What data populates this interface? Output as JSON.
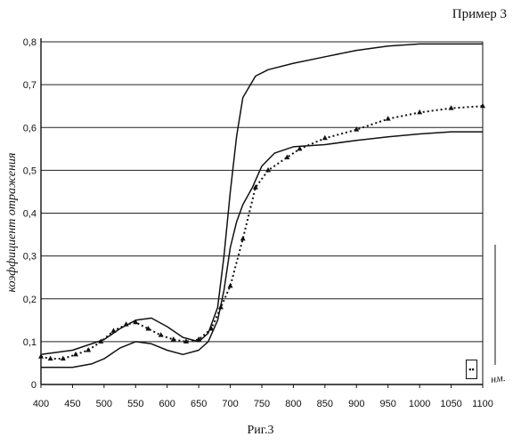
{
  "header": {
    "label": "Пример 3"
  },
  "caption": {
    "text": "Риг.3"
  },
  "legend": {
    "marker": "▪▪"
  },
  "chart_data": {
    "type": "line",
    "title": "",
    "ylabel": "коэффициент отражения",
    "xlabel": "нм.",
    "xlim": [
      400,
      1100
    ],
    "ylim": [
      0,
      0.8
    ],
    "x_ticks": [
      400,
      450,
      500,
      550,
      600,
      650,
      700,
      750,
      800,
      850,
      900,
      950,
      1000,
      1050,
      1100
    ],
    "y_ticks": [
      0,
      0.1,
      0.2,
      0.3,
      0.4,
      0.5,
      0.6,
      0.7,
      0.8
    ],
    "y_tick_labels": [
      "0",
      "0,1",
      "0,2",
      "0,3",
      "0,4",
      "0,5",
      "0,6",
      "0,7",
      "0,8"
    ],
    "grid": "horizontal",
    "series": [
      {
        "style": "solid",
        "x": [
          400,
          450,
          500,
          525,
          550,
          575,
          600,
          625,
          650,
          665,
          680,
          690,
          700,
          710,
          720,
          740,
          760,
          800,
          850,
          900,
          950,
          1000,
          1050,
          1100
        ],
        "y": [
          0.07,
          0.08,
          0.105,
          0.13,
          0.15,
          0.155,
          0.135,
          0.11,
          0.1,
          0.12,
          0.18,
          0.3,
          0.45,
          0.58,
          0.67,
          0.72,
          0.735,
          0.75,
          0.765,
          0.78,
          0.79,
          0.795,
          0.795,
          0.795
        ]
      },
      {
        "style": "solid",
        "x": [
          400,
          450,
          480,
          500,
          525,
          550,
          575,
          600,
          625,
          650,
          665,
          680,
          690,
          700,
          710,
          720,
          735,
          750,
          770,
          800,
          850,
          900,
          950,
          1000,
          1050,
          1100
        ],
        "y": [
          0.04,
          0.04,
          0.048,
          0.06,
          0.085,
          0.1,
          0.095,
          0.08,
          0.07,
          0.08,
          0.1,
          0.15,
          0.22,
          0.32,
          0.38,
          0.42,
          0.46,
          0.51,
          0.54,
          0.555,
          0.56,
          0.57,
          0.578,
          0.585,
          0.59,
          0.59
        ]
      },
      {
        "style": "dotted-triangles",
        "x": [
          400,
          415,
          435,
          455,
          475,
          495,
          515,
          535,
          550,
          570,
          590,
          610,
          630,
          650,
          670,
          685,
          700,
          720,
          740,
          760,
          790,
          810,
          850,
          900,
          950,
          1000,
          1050,
          1100
        ],
        "y": [
          0.065,
          0.06,
          0.06,
          0.07,
          0.08,
          0.1,
          0.125,
          0.14,
          0.145,
          0.13,
          0.115,
          0.105,
          0.1,
          0.105,
          0.13,
          0.18,
          0.23,
          0.34,
          0.46,
          0.5,
          0.53,
          0.55,
          0.575,
          0.595,
          0.62,
          0.635,
          0.645,
          0.65
        ]
      }
    ]
  }
}
